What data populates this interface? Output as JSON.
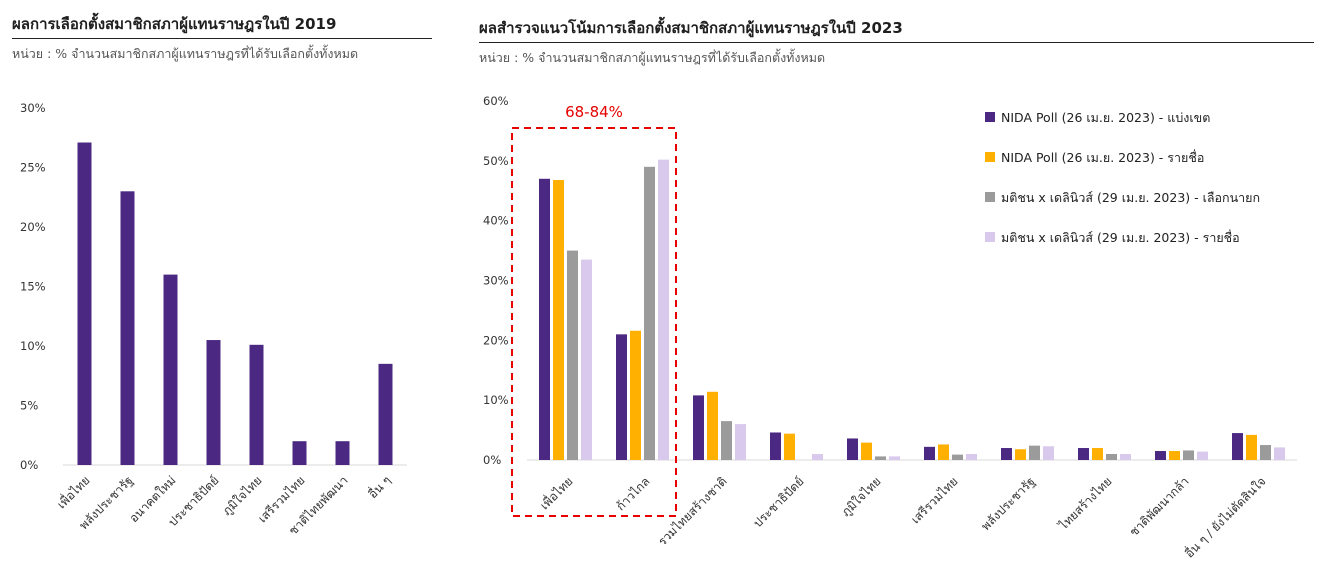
{
  "chart_data": [
    {
      "type": "bar",
      "title": "ผลการเลือกตั้งสมาชิกสภาผู้แทนราษฎรในปี 2019",
      "subtitle": "หน่วย : % จำนวนสมาชิกสภาผู้แทนราษฎรที่ได้รับเลือกตั้งทั้งหมด",
      "categories": [
        "เพื่อไทย",
        "พลังประชารัฐ",
        "อนาคตใหม่",
        "ประชาธิปัตย์",
        "ภูมิใจไทย",
        "เสรีรวมไทย",
        "ชาติไทยพัฒนา",
        "อื่น ๆ"
      ],
      "values": [
        27.1,
        23.0,
        16.0,
        10.5,
        10.1,
        2.0,
        2.0,
        8.5
      ],
      "ylim": [
        0,
        30
      ],
      "yticks": [
        0,
        5,
        10,
        15,
        20,
        25,
        30
      ],
      "ytick_labels": [
        "0%",
        "5%",
        "10%",
        "15%",
        "20%",
        "25%",
        "30%"
      ],
      "bar_color": "#4B2882",
      "grid": false
    },
    {
      "type": "bar",
      "title": "ผลสำรวจแนวโน้มการเลือกตั้งสมาชิกสภาผู้แทนราษฎรในปี 2023",
      "subtitle": "หน่วย : % จำนวนสมาชิกสภาผู้แทนราษฎรที่ได้รับเลือกตั้งทั้งหมด",
      "categories": [
        "เพื่อไทย",
        "ก้าวไกล",
        "รวมไทยสร้างชาติ",
        "ประชาธิปัตย์",
        "ภูมิใจไทย",
        "เสรีรวมไทย",
        "พลังประชารัฐ",
        "ไทยสร้างไทย",
        "ชาติพัฒนากล้า",
        "อื่น ๆ / ยังไม่ตัดสินใจ"
      ],
      "series": [
        {
          "name": "NIDA Poll (26 เม.ย. 2023) - แบ่งเขต",
          "color": "#4B2882",
          "values": [
            47.0,
            21.0,
            10.8,
            4.6,
            3.6,
            2.2,
            2.0,
            2.0,
            1.5,
            4.5
          ]
        },
        {
          "name": "NIDA Poll (26 เม.ย. 2023) - รายชื่อ",
          "color": "#FFB000",
          "values": [
            46.8,
            21.6,
            11.4,
            4.4,
            2.9,
            2.6,
            1.8,
            2.0,
            1.5,
            4.2
          ]
        },
        {
          "name": "มติชน x เดลินิวส์ (29 เม.ย. 2023) - เลือกนายก",
          "color": "#9B9B9B",
          "values": [
            35.0,
            49.0,
            6.5,
            0.0,
            0.6,
            0.9,
            2.4,
            1.0,
            1.6,
            2.5
          ]
        },
        {
          "name": "มติชน x เดลินิวส์ (29 เม.ย. 2023) - รายชื่อ",
          "color": "#D9C9EC",
          "values": [
            33.5,
            50.2,
            6.0,
            1.0,
            0.6,
            1.0,
            2.3,
            1.0,
            1.4,
            2.1
          ]
        }
      ],
      "ylim": [
        0,
        60
      ],
      "yticks": [
        0,
        10,
        20,
        30,
        40,
        50,
        60
      ],
      "ytick_labels": [
        "0%",
        "10%",
        "20%",
        "30%",
        "40%",
        "50%",
        "60%"
      ],
      "legend_position": "top-right",
      "annotation": {
        "text": "68-84%",
        "color": "#E60000",
        "categories": [
          "เพื่อไทย",
          "ก้าวไกล"
        ],
        "style": "dashed-box"
      },
      "grid": false
    }
  ]
}
